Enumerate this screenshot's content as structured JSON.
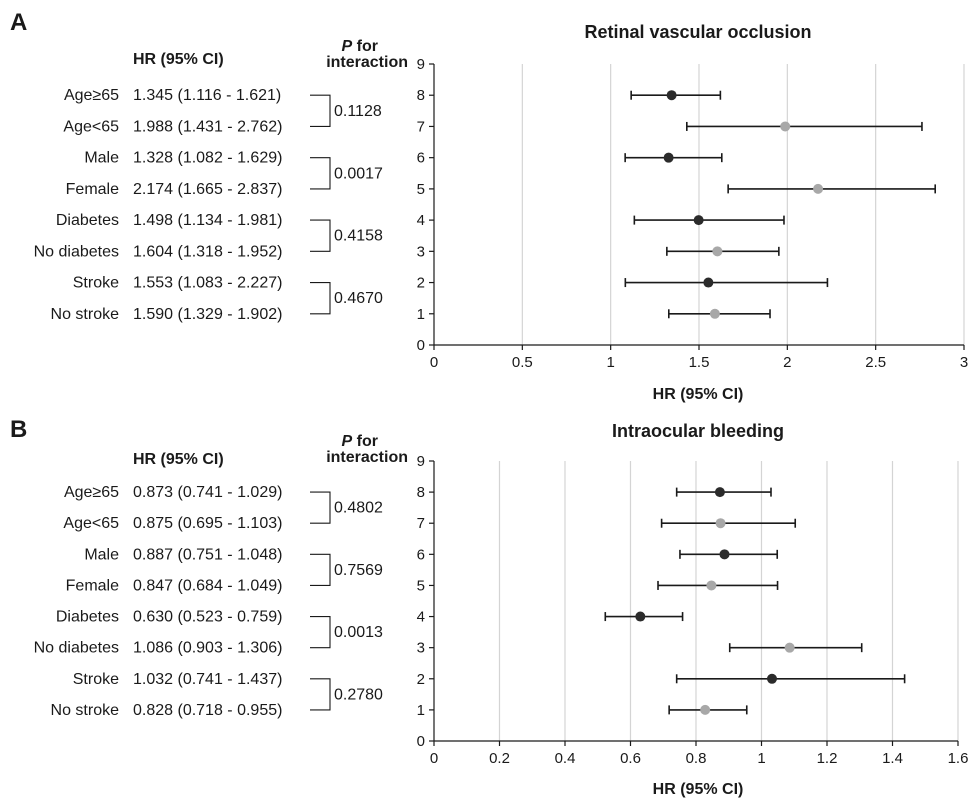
{
  "chart_data": [
    {
      "type": "forest",
      "panel_label": "A",
      "title": "Retinal vascular occlusion",
      "xlabel": "HR (95% CI)",
      "hr_header": "HR (95% CI)",
      "p_header_italic": "P",
      "p_header_rest": " for",
      "p_header_line2": "interaction",
      "xlim": [
        0,
        3
      ],
      "x_ticks": [
        0,
        0.5,
        1,
        1.5,
        2,
        2.5,
        3
      ],
      "x_tick_labels": [
        "0",
        "0.5",
        "1",
        "1.5",
        "2",
        "2.5",
        "3"
      ],
      "ylim": [
        0,
        9
      ],
      "y_ticks": [
        "0",
        "1",
        "2",
        "3",
        "4",
        "5",
        "6",
        "7",
        "8",
        "9"
      ],
      "grid": "vertical",
      "rows": [
        {
          "label": "Age≥65",
          "ci_text": "1.345 (1.116 - 1.621)",
          "y": 8,
          "hr": 1.345,
          "lo": 1.116,
          "hi": 1.621,
          "color": "#2b2b2b"
        },
        {
          "label": "Age<65",
          "ci_text": "1.988 (1.431 - 2.762)",
          "y": 7,
          "hr": 1.988,
          "lo": 1.431,
          "hi": 2.762,
          "color": "#a8a8a8"
        },
        {
          "label": "Male",
          "ci_text": "1.328 (1.082 - 1.629)",
          "y": 6,
          "hr": 1.328,
          "lo": 1.082,
          "hi": 1.629,
          "color": "#2b2b2b"
        },
        {
          "label": "Female",
          "ci_text": "2.174 (1.665 - 2.837)",
          "y": 5,
          "hr": 2.174,
          "lo": 1.665,
          "hi": 2.837,
          "color": "#a8a8a8"
        },
        {
          "label": "Diabetes",
          "ci_text": "1.498 (1.134 - 1.981)",
          "y": 4,
          "hr": 1.498,
          "lo": 1.134,
          "hi": 1.981,
          "color": "#2b2b2b"
        },
        {
          "label": "No diabetes",
          "ci_text": "1.604 (1.318 - 1.952)",
          "y": 3,
          "hr": 1.604,
          "lo": 1.318,
          "hi": 1.952,
          "color": "#a8a8a8"
        },
        {
          "label": "Stroke",
          "ci_text": "1.553 (1.083 - 2.227)",
          "y": 2,
          "hr": 1.553,
          "lo": 1.083,
          "hi": 2.227,
          "color": "#2b2b2b"
        },
        {
          "label": "No stroke",
          "ci_text": "1.590 (1.329 - 1.902)",
          "y": 1,
          "hr": 1.59,
          "lo": 1.329,
          "hi": 1.902,
          "color": "#a8a8a8"
        }
      ],
      "p_values": [
        "0.1128",
        "0.0017",
        "0.4158",
        "0.4670"
      ]
    },
    {
      "type": "forest",
      "panel_label": "B",
      "title": "Intraocular bleeding",
      "xlabel": "HR (95% CI)",
      "hr_header": "HR (95% CI)",
      "p_header_italic": "P",
      "p_header_rest": " for",
      "p_header_line2": "interaction",
      "xlim": [
        0,
        1.6
      ],
      "x_ticks": [
        0,
        0.2,
        0.4,
        0.6,
        0.8,
        1,
        1.2,
        1.4,
        1.6
      ],
      "x_tick_labels": [
        "0",
        "0.2",
        "0.4",
        "0.6",
        "0.8",
        "1",
        "1.2",
        "1.4",
        "1.6"
      ],
      "ylim": [
        0,
        9
      ],
      "y_ticks": [
        "0",
        "1",
        "2",
        "3",
        "4",
        "5",
        "6",
        "7",
        "8",
        "9"
      ],
      "grid": "vertical",
      "rows": [
        {
          "label": "Age≥65",
          "ci_text": "0.873 (0.741 - 1.029)",
          "y": 8,
          "hr": 0.873,
          "lo": 0.741,
          "hi": 1.029,
          "color": "#2b2b2b"
        },
        {
          "label": "Age<65",
          "ci_text": "0.875 (0.695 - 1.103)",
          "y": 7,
          "hr": 0.875,
          "lo": 0.695,
          "hi": 1.103,
          "color": "#a8a8a8"
        },
        {
          "label": "Male",
          "ci_text": "0.887 (0.751 - 1.048)",
          "y": 6,
          "hr": 0.887,
          "lo": 0.751,
          "hi": 1.048,
          "color": "#2b2b2b"
        },
        {
          "label": "Female",
          "ci_text": "0.847 (0.684 - 1.049)",
          "y": 5,
          "hr": 0.847,
          "lo": 0.684,
          "hi": 1.049,
          "color": "#a8a8a8"
        },
        {
          "label": "Diabetes",
          "ci_text": "0.630 (0.523 - 0.759)",
          "y": 4,
          "hr": 0.63,
          "lo": 0.523,
          "hi": 0.759,
          "color": "#2b2b2b"
        },
        {
          "label": "No diabetes",
          "ci_text": "1.086 (0.903 - 1.306)",
          "y": 3,
          "hr": 1.086,
          "lo": 0.903,
          "hi": 1.306,
          "color": "#a8a8a8"
        },
        {
          "label": "Stroke",
          "ci_text": "1.032 (0.741 - 1.437)",
          "y": 2,
          "hr": 1.032,
          "lo": 0.741,
          "hi": 1.437,
          "color": "#2b2b2b"
        },
        {
          "label": "No stroke",
          "ci_text": "0.828 (0.718 - 0.955)",
          "y": 1,
          "hr": 0.828,
          "lo": 0.718,
          "hi": 0.955,
          "color": "#a8a8a8"
        }
      ],
      "p_values": [
        "0.4802",
        "0.7569",
        "0.0013",
        "0.2780"
      ]
    }
  ]
}
